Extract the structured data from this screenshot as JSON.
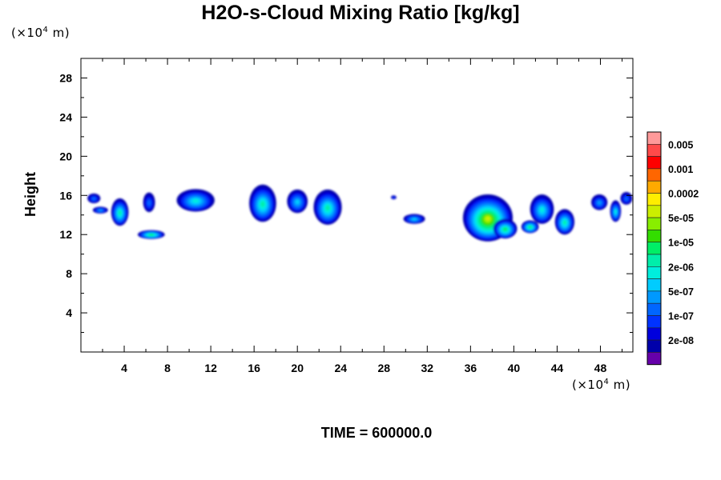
{
  "title": "H2O-s-Cloud Mixing Ratio [kg/kg]",
  "y_unit": "m",
  "x_unit": "m",
  "unit_base": "(×10",
  "unit_exp": "4",
  "ylabel": "Height",
  "footer": "TIME = 600000.0",
  "chart_data": {
    "type": "heatmap",
    "title": "H2O-s-Cloud Mixing Ratio [kg/kg]",
    "xlabel": "",
    "ylabel": "Height",
    "x_scale_note": "×10^4 m",
    "y_scale_note": "×10^4 m",
    "xlim": [
      0,
      51
    ],
    "ylim": [
      0,
      30
    ],
    "x_ticks": [
      4,
      8,
      12,
      16,
      20,
      24,
      28,
      32,
      36,
      40,
      44,
      48
    ],
    "y_ticks": [
      4,
      8,
      12,
      16,
      20,
      24,
      28
    ],
    "x_minor_step": 2,
    "y_minor_step": 2,
    "colorbar": {
      "label_texts": [
        "0.005",
        "0.001",
        "0.0002",
        "5e-05",
        "1e-05",
        "2e-06",
        "5e-07",
        "1e-07",
        "2e-08"
      ],
      "colors_top_to_bottom": [
        "#ff9a9a",
        "#ff4a4a",
        "#ff0000",
        "#ff6600",
        "#ffaa00",
        "#ffee00",
        "#ccee00",
        "#88ee00",
        "#33dd00",
        "#00ee66",
        "#00eeaa",
        "#00eedd",
        "#00ccff",
        "#0099ff",
        "#0066ff",
        "#0033ff",
        "#0000dd",
        "#0000aa",
        "#6600aa"
      ]
    },
    "cloud_cells": [
      {
        "x": 1.2,
        "y": 15.7,
        "w": 1.2,
        "h": 1.0,
        "level": 3
      },
      {
        "x": 1.8,
        "y": 14.5,
        "w": 1.4,
        "h": 0.7,
        "level": 4
      },
      {
        "x": 3.6,
        "y": 14.3,
        "w": 1.6,
        "h": 2.8,
        "level": 7
      },
      {
        "x": 6.3,
        "y": 15.3,
        "w": 1.1,
        "h": 2.0,
        "level": 3
      },
      {
        "x": 6.5,
        "y": 12.0,
        "w": 2.5,
        "h": 0.9,
        "level": 8
      },
      {
        "x": 10.6,
        "y": 15.5,
        "w": 3.5,
        "h": 2.3,
        "level": 6
      },
      {
        "x": 16.8,
        "y": 15.2,
        "w": 2.5,
        "h": 3.8,
        "level": 7
      },
      {
        "x": 20.0,
        "y": 15.4,
        "w": 1.9,
        "h": 2.4,
        "level": 5
      },
      {
        "x": 22.8,
        "y": 14.8,
        "w": 2.6,
        "h": 3.6,
        "level": 7
      },
      {
        "x": 28.9,
        "y": 15.8,
        "w": 0.5,
        "h": 0.4,
        "level": 2
      },
      {
        "x": 30.8,
        "y": 13.6,
        "w": 2.0,
        "h": 1.0,
        "level": 5
      },
      {
        "x": 37.6,
        "y": 13.7,
        "w": 4.6,
        "h": 4.8,
        "level": 11
      },
      {
        "x": 39.2,
        "y": 12.6,
        "w": 2.2,
        "h": 2.0,
        "level": 8
      },
      {
        "x": 42.6,
        "y": 14.6,
        "w": 2.2,
        "h": 3.0,
        "level": 6
      },
      {
        "x": 41.5,
        "y": 12.8,
        "w": 1.6,
        "h": 1.3,
        "level": 8
      },
      {
        "x": 44.7,
        "y": 13.3,
        "w": 1.8,
        "h": 2.6,
        "level": 7
      },
      {
        "x": 47.9,
        "y": 15.3,
        "w": 1.5,
        "h": 1.6,
        "level": 4
      },
      {
        "x": 49.4,
        "y": 14.4,
        "w": 1.0,
        "h": 2.2,
        "level": 6
      },
      {
        "x": 50.4,
        "y": 15.7,
        "w": 1.1,
        "h": 1.3,
        "level": 3
      }
    ]
  }
}
